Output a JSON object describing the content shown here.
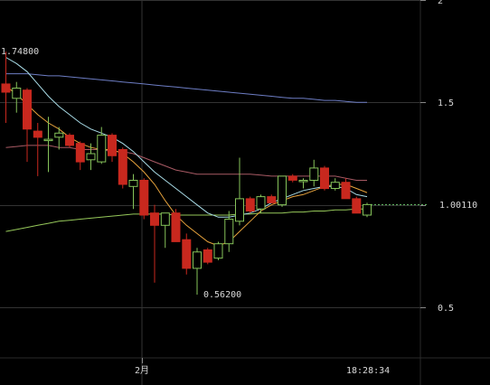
{
  "chart_data": {
    "type": "candlestick",
    "y_ticks": [
      2,
      1.5,
      1.0,
      0.5
    ],
    "y_tick_labels": [
      "2",
      "1.5",
      "",
      "0.5"
    ],
    "ylim": [
      0.3,
      2.0
    ],
    "x_tick_label": "2月",
    "time_label": "18:28:34",
    "current_price_label": "1.00110",
    "current_price": 1.0011,
    "high_annotation": "1.74800",
    "high_value": 1.748,
    "low_annotation": "0.56200",
    "low_value": 0.562,
    "colors": {
      "up": "#86c35a",
      "down": "#c8281e",
      "ma_short": "#e6a23c",
      "ma_mid": "#a8dbe6",
      "ma_long1": "#a85a64",
      "ma_long2": "#96c85a",
      "ma_long3": "#6d7dc4",
      "grid": "#333333",
      "price_line": "#6ac46a"
    },
    "candles": [
      {
        "o": 1.59,
        "h": 1.748,
        "l": 1.4,
        "c": 1.55
      },
      {
        "o": 1.52,
        "h": 1.6,
        "l": 1.45,
        "c": 1.57
      },
      {
        "o": 1.56,
        "h": 1.57,
        "l": 1.21,
        "c": 1.37
      },
      {
        "o": 1.36,
        "h": 1.4,
        "l": 1.14,
        "c": 1.33
      },
      {
        "o": 1.32,
        "h": 1.43,
        "l": 1.16,
        "c": 1.32
      },
      {
        "o": 1.33,
        "h": 1.38,
        "l": 1.27,
        "c": 1.35
      },
      {
        "o": 1.34,
        "h": 1.35,
        "l": 1.28,
        "c": 1.29
      },
      {
        "o": 1.3,
        "h": 1.31,
        "l": 1.17,
        "c": 1.21
      },
      {
        "o": 1.22,
        "h": 1.3,
        "l": 1.17,
        "c": 1.25
      },
      {
        "o": 1.21,
        "h": 1.38,
        "l": 1.2,
        "c": 1.34
      },
      {
        "o": 1.34,
        "h": 1.35,
        "l": 1.21,
        "c": 1.24
      },
      {
        "o": 1.27,
        "h": 1.28,
        "l": 1.08,
        "c": 1.1
      },
      {
        "o": 1.09,
        "h": 1.15,
        "l": 0.98,
        "c": 1.12
      },
      {
        "o": 1.12,
        "h": 1.13,
        "l": 0.93,
        "c": 0.95
      },
      {
        "o": 0.96,
        "h": 1.0,
        "l": 0.62,
        "c": 0.9
      },
      {
        "o": 0.9,
        "h": 0.96,
        "l": 0.79,
        "c": 0.96
      },
      {
        "o": 0.96,
        "h": 0.98,
        "l": 0.82,
        "c": 0.82
      },
      {
        "o": 0.83,
        "h": 0.86,
        "l": 0.66,
        "c": 0.69
      },
      {
        "o": 0.69,
        "h": 0.79,
        "l": 0.562,
        "c": 0.77
      },
      {
        "o": 0.78,
        "h": 0.79,
        "l": 0.71,
        "c": 0.72
      },
      {
        "o": 0.74,
        "h": 0.82,
        "l": 0.73,
        "c": 0.81
      },
      {
        "o": 0.81,
        "h": 0.97,
        "l": 0.77,
        "c": 0.93
      },
      {
        "o": 0.92,
        "h": 1.23,
        "l": 0.9,
        "c": 1.03
      },
      {
        "o": 1.03,
        "h": 1.04,
        "l": 0.96,
        "c": 0.97
      },
      {
        "o": 0.98,
        "h": 1.05,
        "l": 0.96,
        "c": 1.04
      },
      {
        "o": 1.04,
        "h": 1.05,
        "l": 1.01,
        "c": 1.01
      },
      {
        "o": 1.0,
        "h": 1.14,
        "l": 0.99,
        "c": 1.14
      },
      {
        "o": 1.14,
        "h": 1.15,
        "l": 1.11,
        "c": 1.12
      },
      {
        "o": 1.12,
        "h": 1.13,
        "l": 1.08,
        "c": 1.12
      },
      {
        "o": 1.12,
        "h": 1.22,
        "l": 1.09,
        "c": 1.18
      },
      {
        "o": 1.18,
        "h": 1.19,
        "l": 1.07,
        "c": 1.08
      },
      {
        "o": 1.08,
        "h": 1.13,
        "l": 1.07,
        "c": 1.11
      },
      {
        "o": 1.11,
        "h": 1.13,
        "l": 1.03,
        "c": 1.03
      },
      {
        "o": 1.03,
        "h": 1.04,
        "l": 0.96,
        "c": 0.96
      },
      {
        "o": 0.95,
        "h": 1.01,
        "l": 0.94,
        "c": 1.0011
      }
    ],
    "ma_short": [
      1.58,
      1.54,
      1.49,
      1.44,
      1.4,
      1.37,
      1.33,
      1.3,
      1.28,
      1.27,
      1.27,
      1.25,
      1.21,
      1.16,
      1.1,
      1.02,
      0.95,
      0.9,
      0.86,
      0.82,
      0.8,
      0.82,
      0.87,
      0.92,
      0.97,
      1.0,
      1.02,
      1.04,
      1.05,
      1.07,
      1.09,
      1.1,
      1.1,
      1.08,
      1.06
    ],
    "ma_mid": [
      1.72,
      1.69,
      1.65,
      1.59,
      1.53,
      1.48,
      1.44,
      1.4,
      1.37,
      1.35,
      1.33,
      1.3,
      1.26,
      1.21,
      1.16,
      1.12,
      1.08,
      1.04,
      1.0,
      0.96,
      0.94,
      0.94,
      0.95,
      0.96,
      0.98,
      1.01,
      1.03,
      1.05,
      1.07,
      1.08,
      1.09,
      1.09,
      1.08,
      1.05,
      1.04
    ],
    "ma_long1": [
      1.28,
      1.285,
      1.29,
      1.29,
      1.29,
      1.28,
      1.28,
      1.27,
      1.27,
      1.27,
      1.26,
      1.26,
      1.25,
      1.23,
      1.21,
      1.19,
      1.17,
      1.16,
      1.15,
      1.15,
      1.15,
      1.15,
      1.15,
      1.15,
      1.145,
      1.14,
      1.14,
      1.14,
      1.14,
      1.14,
      1.14,
      1.14,
      1.13,
      1.12,
      1.12
    ],
    "ma_long2": [
      0.87,
      0.88,
      0.89,
      0.9,
      0.91,
      0.92,
      0.925,
      0.93,
      0.935,
      0.94,
      0.945,
      0.95,
      0.955,
      0.955,
      0.955,
      0.955,
      0.95,
      0.95,
      0.95,
      0.95,
      0.95,
      0.95,
      0.955,
      0.955,
      0.96,
      0.96,
      0.96,
      0.965,
      0.965,
      0.97,
      0.97,
      0.975,
      0.975,
      0.98,
      0.98
    ],
    "ma_long3": [
      1.64,
      1.64,
      1.64,
      1.635,
      1.63,
      1.63,
      1.625,
      1.62,
      1.615,
      1.61,
      1.605,
      1.6,
      1.595,
      1.59,
      1.585,
      1.58,
      1.575,
      1.57,
      1.565,
      1.56,
      1.555,
      1.55,
      1.545,
      1.54,
      1.535,
      1.53,
      1.525,
      1.52,
      1.52,
      1.515,
      1.51,
      1.51,
      1.505,
      1.5,
      1.5
    ]
  }
}
